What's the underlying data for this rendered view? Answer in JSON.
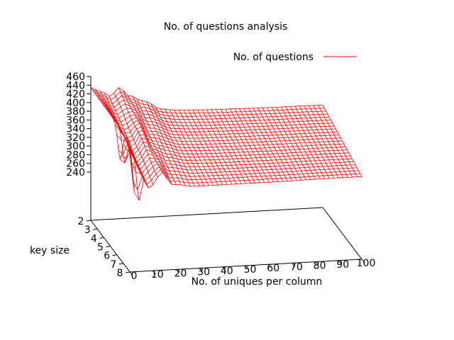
{
  "chart_data": {
    "type": "surface",
    "title": "No. of questions analysis",
    "xlabel": "No. of uniques per column",
    "ylabel": "key size",
    "zlabel": "",
    "legend": {
      "label": "No. of questions",
      "placement": "top-right",
      "color": "#ff0000"
    },
    "x_ticks": [
      0,
      10,
      20,
      30,
      40,
      50,
      60,
      70,
      80,
      90,
      100
    ],
    "y_ticks": [
      2,
      3,
      4,
      5,
      6,
      7,
      8
    ],
    "z_ticks": [
      240,
      260,
      280,
      300,
      320,
      340,
      360,
      380,
      400,
      420,
      440,
      460
    ],
    "x_range": [
      0,
      100
    ],
    "y_range": [
      2,
      8
    ],
    "z_range": [
      240,
      460
    ],
    "colors": {
      "surface": "#ff0000",
      "underside": "#00a000",
      "axes": "#000000"
    },
    "surface_profile": {
      "x": [
        0,
        2,
        4,
        6,
        8,
        10,
        12,
        14,
        16,
        18,
        20,
        22,
        24,
        26,
        28,
        30,
        35,
        40,
        50,
        60,
        70,
        80,
        90,
        100
      ],
      "key_size_2": [
        405,
        400,
        395,
        390,
        385,
        390,
        398,
        395,
        385,
        378,
        372,
        370,
        366,
        360,
        352,
        348,
        344,
        342,
        340,
        339,
        338,
        337,
        337,
        336
      ],
      "key_size_8": [
        400,
        380,
        345,
        310,
        290,
        300,
        318,
        322,
        310,
        300,
        296,
        294,
        292,
        291,
        290,
        290,
        290,
        290,
        290,
        290,
        290,
        291,
        291,
        291
      ],
      "min_dips": [
        {
          "x": 1,
          "key_size": 6.5,
          "z": 258
        },
        {
          "x": 3,
          "key_size": 8,
          "z": 186
        }
      ]
    }
  }
}
